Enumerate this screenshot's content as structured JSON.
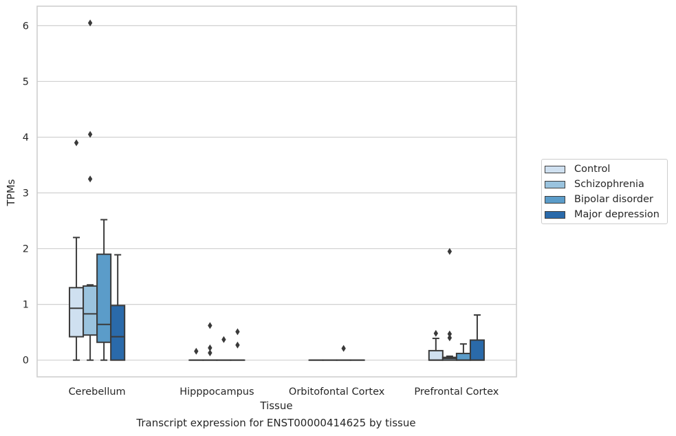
{
  "chart_data": {
    "type": "box",
    "xlabel": "Tissue",
    "ylabel": "TPMs",
    "caption": "Transcript expression for ENST00000414625 by tissue",
    "ylim": [
      -0.3,
      6.35
    ],
    "yticks": [
      0,
      1,
      2,
      3,
      4,
      5,
      6
    ],
    "grid": "horizontal",
    "legend_position": "right",
    "categories": [
      "Cerebellum",
      "Hipppocampus",
      "Orbitofontal Cortex",
      "Prefrontal Cortex"
    ],
    "series": [
      {
        "name": "Control",
        "color": "#cfe0f0",
        "boxes": [
          {
            "category": "Cerebellum",
            "whisker_low": 0,
            "q1": 0.42,
            "median": 0.93,
            "q3": 1.3,
            "whisker_high": 2.2,
            "outliers": [
              3.9
            ]
          },
          {
            "category": "Hipppocampus",
            "whisker_low": 0,
            "q1": 0,
            "median": 0,
            "q3": 0,
            "whisker_high": 0,
            "outliers": [
              0.16
            ]
          },
          {
            "category": "Orbitofontal Cortex",
            "whisker_low": 0,
            "q1": 0,
            "median": 0,
            "q3": 0,
            "whisker_high": 0,
            "outliers": []
          },
          {
            "category": "Prefrontal Cortex",
            "whisker_low": 0,
            "q1": 0,
            "median": 0,
            "q3": 0.17,
            "whisker_high": 0.39,
            "outliers": [
              0.48
            ]
          }
        ]
      },
      {
        "name": "Schizophrenia",
        "color": "#9ac3de",
        "boxes": [
          {
            "category": "Cerebellum",
            "whisker_low": 0,
            "q1": 0.45,
            "median": 0.83,
            "q3": 1.33,
            "whisker_high": 1.35,
            "outliers": [
              3.25,
              4.05,
              6.05
            ]
          },
          {
            "category": "Hipppocampus",
            "whisker_low": 0,
            "q1": 0,
            "median": 0,
            "q3": 0,
            "whisker_high": 0,
            "outliers": [
              0.13,
              0.22,
              0.62
            ]
          },
          {
            "category": "Orbitofontal Cortex",
            "whisker_low": 0,
            "q1": 0,
            "median": 0,
            "q3": 0,
            "whisker_high": 0,
            "outliers": []
          },
          {
            "category": "Prefrontal Cortex",
            "whisker_low": 0,
            "q1": 0,
            "median": 0.03,
            "q3": 0.05,
            "whisker_high": 0.07,
            "outliers": [
              0.4,
              0.47,
              1.95
            ]
          }
        ]
      },
      {
        "name": "Bipolar disorder",
        "color": "#5b9cc9",
        "boxes": [
          {
            "category": "Cerebellum",
            "whisker_low": 0,
            "q1": 0.32,
            "median": 0.64,
            "q3": 1.9,
            "whisker_high": 2.52,
            "outliers": []
          },
          {
            "category": "Hipppocampus",
            "whisker_low": 0,
            "q1": 0,
            "median": 0,
            "q3": 0,
            "whisker_high": 0,
            "outliers": [
              0.37
            ]
          },
          {
            "category": "Orbitofontal Cortex",
            "whisker_low": 0,
            "q1": 0,
            "median": 0,
            "q3": 0,
            "whisker_high": 0,
            "outliers": [
              0.21
            ]
          },
          {
            "category": "Prefrontal Cortex",
            "whisker_low": 0,
            "q1": 0,
            "median": 0,
            "q3": 0.12,
            "whisker_high": 0.29,
            "outliers": []
          }
        ]
      },
      {
        "name": "Major depression",
        "color": "#2a6aaa",
        "boxes": [
          {
            "category": "Cerebellum",
            "whisker_low": 0,
            "q1": 0,
            "median": 0.42,
            "q3": 0.98,
            "whisker_high": 1.89,
            "outliers": []
          },
          {
            "category": "Hipppocampus",
            "whisker_low": 0,
            "q1": 0,
            "median": 0,
            "q3": 0,
            "whisker_high": 0,
            "outliers": [
              0.27,
              0.51
            ]
          },
          {
            "category": "Orbitofontal Cortex",
            "whisker_low": 0,
            "q1": 0,
            "median": 0,
            "q3": 0,
            "whisker_high": 0,
            "outliers": []
          },
          {
            "category": "Prefrontal Cortex",
            "whisker_low": 0,
            "q1": 0,
            "median": 0,
            "q3": 0.36,
            "whisker_high": 0.81,
            "outliers": []
          }
        ]
      }
    ]
  }
}
